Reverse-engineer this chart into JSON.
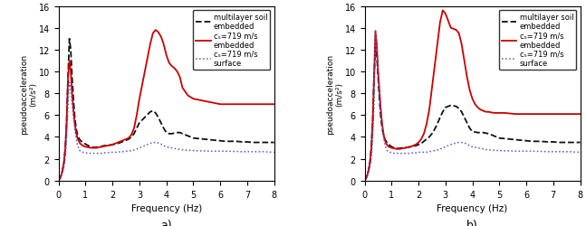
{
  "title_a": "a)",
  "title_b": "b)",
  "xlabel": "Frequency (Hz)",
  "ylabel": "pseudoacceleration\n(m/s²)",
  "xlim": [
    0,
    8
  ],
  "ylim": [
    0,
    16
  ],
  "yticks": [
    0,
    2,
    4,
    6,
    8,
    10,
    12,
    14,
    16
  ],
  "xticks": [
    0,
    1,
    2,
    3,
    4,
    5,
    6,
    7,
    8
  ],
  "legend_labels": [
    "multilayer soil\nembedded",
    "cₛ=719 m/s\nembedded",
    "cₛ=719 m/s\nsurface"
  ],
  "freq_a": [
    0.0,
    0.05,
    0.1,
    0.15,
    0.2,
    0.25,
    0.3,
    0.35,
    0.4,
    0.45,
    0.5,
    0.55,
    0.6,
    0.65,
    0.7,
    0.75,
    0.8,
    0.85,
    0.9,
    0.95,
    1.0,
    1.1,
    1.2,
    1.3,
    1.4,
    1.5,
    1.6,
    1.7,
    1.8,
    1.9,
    2.0,
    2.1,
    2.2,
    2.3,
    2.4,
    2.5,
    2.6,
    2.7,
    2.8,
    2.9,
    3.0,
    3.2,
    3.4,
    3.5,
    3.6,
    3.7,
    3.8,
    3.9,
    4.0,
    4.1,
    4.2,
    4.3,
    4.4,
    4.5,
    4.6,
    4.8,
    5.0,
    5.2,
    5.4,
    5.6,
    5.8,
    6.0,
    6.2,
    6.4,
    6.6,
    6.8,
    7.0,
    7.2,
    7.4,
    7.6,
    7.8,
    8.0
  ],
  "black_a": [
    0.0,
    0.2,
    0.5,
    1.0,
    1.7,
    3.0,
    5.5,
    9.5,
    13.0,
    12.0,
    9.5,
    7.5,
    5.8,
    4.8,
    4.2,
    3.9,
    3.7,
    3.6,
    3.5,
    3.4,
    3.35,
    3.2,
    3.1,
    3.05,
    3.05,
    3.1,
    3.15,
    3.2,
    3.2,
    3.25,
    3.3,
    3.35,
    3.4,
    3.5,
    3.6,
    3.7,
    3.8,
    4.0,
    4.3,
    4.8,
    5.3,
    5.8,
    6.3,
    6.4,
    6.2,
    5.8,
    5.3,
    4.8,
    4.4,
    4.3,
    4.3,
    4.35,
    4.4,
    4.4,
    4.3,
    4.1,
    3.9,
    3.85,
    3.8,
    3.75,
    3.7,
    3.65,
    3.6,
    3.6,
    3.6,
    3.55,
    3.55,
    3.5,
    3.5,
    3.5,
    3.5,
    3.5
  ],
  "red_a": [
    0.0,
    0.2,
    0.5,
    1.0,
    1.7,
    3.0,
    5.5,
    9.5,
    11.0,
    10.0,
    8.0,
    6.5,
    5.2,
    4.4,
    3.9,
    3.6,
    3.4,
    3.3,
    3.2,
    3.15,
    3.1,
    3.05,
    3.0,
    3.0,
    3.0,
    3.05,
    3.1,
    3.15,
    3.2,
    3.25,
    3.3,
    3.4,
    3.5,
    3.6,
    3.7,
    3.8,
    3.9,
    4.2,
    4.8,
    6.0,
    7.5,
    10.0,
    12.5,
    13.5,
    13.8,
    13.6,
    13.2,
    12.5,
    11.5,
    10.8,
    10.5,
    10.3,
    10.0,
    9.5,
    8.5,
    7.8,
    7.5,
    7.4,
    7.3,
    7.2,
    7.1,
    7.0,
    7.0,
    7.0,
    7.0,
    7.0,
    7.0,
    7.0,
    7.0,
    7.0,
    7.0,
    7.0
  ],
  "blue_a": [
    0.0,
    0.15,
    0.4,
    0.8,
    1.3,
    2.2,
    4.0,
    7.0,
    9.0,
    8.5,
    7.0,
    5.8,
    4.8,
    3.9,
    3.3,
    2.9,
    2.7,
    2.65,
    2.6,
    2.55,
    2.55,
    2.5,
    2.5,
    2.5,
    2.5,
    2.5,
    2.5,
    2.55,
    2.55,
    2.6,
    2.6,
    2.6,
    2.6,
    2.65,
    2.65,
    2.7,
    2.7,
    2.75,
    2.8,
    2.9,
    3.0,
    3.2,
    3.4,
    3.5,
    3.5,
    3.45,
    3.35,
    3.2,
    3.1,
    3.05,
    3.0,
    2.95,
    2.9,
    2.85,
    2.82,
    2.78,
    2.75,
    2.73,
    2.72,
    2.7,
    2.7,
    2.7,
    2.7,
    2.68,
    2.67,
    2.65,
    2.65,
    2.65,
    2.65,
    2.65,
    2.62,
    2.6
  ],
  "freq_b": [
    0.0,
    0.05,
    0.1,
    0.15,
    0.2,
    0.25,
    0.3,
    0.35,
    0.4,
    0.45,
    0.5,
    0.55,
    0.6,
    0.65,
    0.7,
    0.75,
    0.8,
    0.85,
    0.9,
    0.95,
    1.0,
    1.1,
    1.2,
    1.3,
    1.4,
    1.5,
    1.6,
    1.7,
    1.8,
    1.9,
    2.0,
    2.1,
    2.2,
    2.3,
    2.4,
    2.5,
    2.6,
    2.7,
    2.8,
    2.9,
    3.0,
    3.2,
    3.4,
    3.5,
    3.6,
    3.7,
    3.8,
    3.9,
    4.0,
    4.1,
    4.2,
    4.3,
    4.4,
    4.5,
    4.6,
    4.8,
    5.0,
    5.2,
    5.4,
    5.6,
    5.8,
    6.0,
    6.2,
    6.4,
    6.6,
    6.8,
    7.0,
    7.2,
    7.4,
    7.6,
    7.8,
    8.0
  ],
  "black_b": [
    0.0,
    0.2,
    0.5,
    1.0,
    1.7,
    3.0,
    5.5,
    9.5,
    12.2,
    11.5,
    9.5,
    7.5,
    5.8,
    4.8,
    4.2,
    3.8,
    3.6,
    3.4,
    3.3,
    3.2,
    3.1,
    3.0,
    2.95,
    2.95,
    3.0,
    3.0,
    3.05,
    3.1,
    3.15,
    3.2,
    3.3,
    3.4,
    3.6,
    3.8,
    4.0,
    4.3,
    4.7,
    5.2,
    5.8,
    6.3,
    6.7,
    6.9,
    6.8,
    6.6,
    6.3,
    5.8,
    5.3,
    4.8,
    4.5,
    4.45,
    4.4,
    4.4,
    4.4,
    4.35,
    4.3,
    4.1,
    3.9,
    3.85,
    3.8,
    3.75,
    3.7,
    3.65,
    3.6,
    3.6,
    3.58,
    3.55,
    3.55,
    3.5,
    3.5,
    3.5,
    3.5,
    3.5
  ],
  "red_b": [
    0.0,
    0.2,
    0.5,
    1.0,
    1.7,
    3.0,
    5.5,
    9.5,
    13.7,
    12.5,
    10.0,
    8.2,
    6.5,
    5.2,
    4.3,
    3.7,
    3.4,
    3.2,
    3.1,
    3.05,
    3.0,
    2.95,
    2.9,
    2.9,
    2.95,
    3.0,
    3.05,
    3.1,
    3.2,
    3.3,
    3.5,
    3.8,
    4.3,
    5.2,
    6.5,
    8.5,
    10.5,
    12.5,
    14.5,
    15.6,
    15.3,
    14.0,
    13.8,
    13.5,
    12.5,
    11.0,
    9.5,
    8.3,
    7.5,
    7.0,
    6.7,
    6.5,
    6.4,
    6.3,
    6.3,
    6.2,
    6.2,
    6.2,
    6.15,
    6.1,
    6.1,
    6.1,
    6.1,
    6.1,
    6.1,
    6.1,
    6.1,
    6.1,
    6.1,
    6.1,
    6.1,
    6.1
  ],
  "blue_b": [
    0.0,
    0.15,
    0.4,
    0.8,
    1.3,
    2.2,
    4.0,
    7.0,
    13.7,
    12.5,
    10.2,
    8.2,
    6.5,
    5.0,
    4.0,
    3.3,
    2.9,
    2.7,
    2.65,
    2.6,
    2.55,
    2.5,
    2.5,
    2.5,
    2.5,
    2.5,
    2.5,
    2.5,
    2.55,
    2.55,
    2.6,
    2.6,
    2.6,
    2.6,
    2.65,
    2.7,
    2.75,
    2.8,
    2.9,
    3.0,
    3.1,
    3.3,
    3.45,
    3.5,
    3.5,
    3.45,
    3.35,
    3.2,
    3.1,
    3.05,
    3.0,
    2.95,
    2.9,
    2.85,
    2.82,
    2.78,
    2.75,
    2.73,
    2.72,
    2.7,
    2.7,
    2.7,
    2.7,
    2.68,
    2.67,
    2.65,
    2.65,
    2.65,
    2.65,
    2.65,
    2.62,
    2.6
  ]
}
